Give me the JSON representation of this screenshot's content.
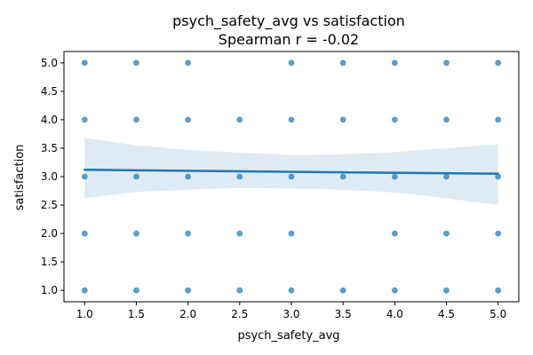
{
  "chart_data": {
    "type": "scatter",
    "title": "psych_safety_avg vs satisfaction",
    "subtitle": "Spearman r = -0.02",
    "xlabel": "psych_safety_avg",
    "ylabel": "satisfaction",
    "xlim": [
      0.8,
      5.2
    ],
    "ylim": [
      0.8,
      5.2
    ],
    "xticks": [
      1.0,
      1.5,
      2.0,
      2.5,
      3.0,
      3.5,
      4.0,
      4.5,
      5.0
    ],
    "xtick_labels": [
      "1.0",
      "1.5",
      "2.0",
      "2.5",
      "3.0",
      "3.5",
      "4.0",
      "4.5",
      "5.0"
    ],
    "yticks": [
      1.0,
      1.5,
      2.0,
      2.5,
      3.0,
      3.5,
      4.0,
      4.5,
      5.0
    ],
    "ytick_labels": [
      "1.0",
      "1.5",
      "2.0",
      "2.5",
      "3.0",
      "3.5",
      "4.0",
      "4.5",
      "5.0"
    ],
    "color": "#1f77b4",
    "points": [
      {
        "x": 1.0,
        "y": 5.0
      },
      {
        "x": 1.0,
        "y": 4.0
      },
      {
        "x": 1.0,
        "y": 3.0
      },
      {
        "x": 1.0,
        "y": 2.0
      },
      {
        "x": 1.0,
        "y": 1.0
      },
      {
        "x": 1.5,
        "y": 5.0
      },
      {
        "x": 1.5,
        "y": 4.0
      },
      {
        "x": 1.5,
        "y": 3.0
      },
      {
        "x": 1.5,
        "y": 2.0
      },
      {
        "x": 1.5,
        "y": 1.0
      },
      {
        "x": 2.0,
        "y": 5.0
      },
      {
        "x": 2.0,
        "y": 4.0
      },
      {
        "x": 2.0,
        "y": 3.0
      },
      {
        "x": 2.0,
        "y": 2.0
      },
      {
        "x": 2.0,
        "y": 1.0
      },
      {
        "x": 2.5,
        "y": 4.0
      },
      {
        "x": 2.5,
        "y": 3.0
      },
      {
        "x": 2.5,
        "y": 2.0
      },
      {
        "x": 2.5,
        "y": 1.0
      },
      {
        "x": 3.0,
        "y": 5.0
      },
      {
        "x": 3.0,
        "y": 4.0
      },
      {
        "x": 3.0,
        "y": 3.0
      },
      {
        "x": 3.0,
        "y": 2.0
      },
      {
        "x": 3.0,
        "y": 1.0
      },
      {
        "x": 3.5,
        "y": 5.0
      },
      {
        "x": 3.5,
        "y": 4.0
      },
      {
        "x": 3.5,
        "y": 3.0
      },
      {
        "x": 3.5,
        "y": 1.0
      },
      {
        "x": 4.0,
        "y": 5.0
      },
      {
        "x": 4.0,
        "y": 4.0
      },
      {
        "x": 4.0,
        "y": 3.0
      },
      {
        "x": 4.0,
        "y": 2.0
      },
      {
        "x": 4.0,
        "y": 1.0
      },
      {
        "x": 4.5,
        "y": 5.0
      },
      {
        "x": 4.5,
        "y": 4.0
      },
      {
        "x": 4.5,
        "y": 3.0
      },
      {
        "x": 4.5,
        "y": 2.0
      },
      {
        "x": 4.5,
        "y": 1.0
      },
      {
        "x": 5.0,
        "y": 5.0
      },
      {
        "x": 5.0,
        "y": 4.0
      },
      {
        "x": 5.0,
        "y": 3.0
      },
      {
        "x": 5.0,
        "y": 2.0
      },
      {
        "x": 5.0,
        "y": 1.0
      }
    ],
    "regression": {
      "x": [
        1.0,
        5.0
      ],
      "y": [
        3.12,
        3.05
      ]
    },
    "confidence_band": {
      "x": [
        1.0,
        1.5,
        2.0,
        2.5,
        3.0,
        3.5,
        4.0,
        4.5,
        5.0
      ],
      "upper": [
        3.68,
        3.55,
        3.47,
        3.42,
        3.38,
        3.39,
        3.43,
        3.5,
        3.57
      ],
      "lower": [
        2.62,
        2.73,
        2.77,
        2.8,
        2.79,
        2.77,
        2.72,
        2.62,
        2.5
      ]
    }
  }
}
